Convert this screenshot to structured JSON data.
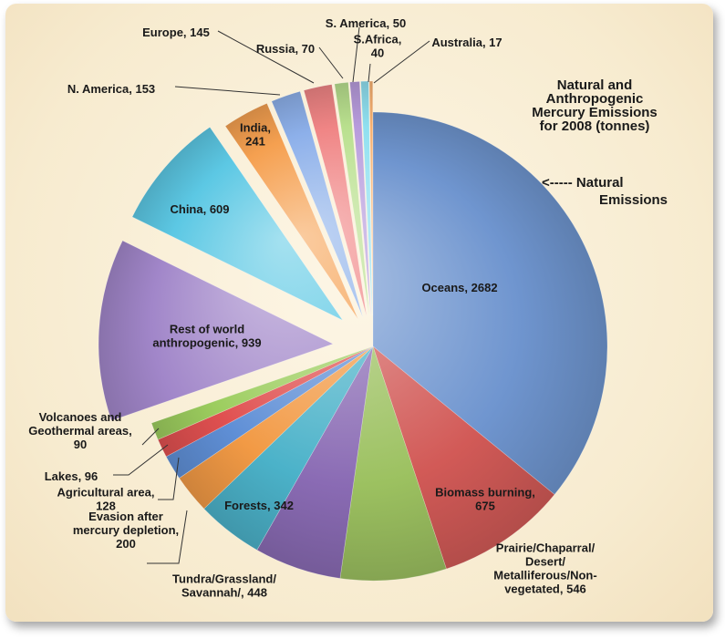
{
  "chart_data": {
    "type": "pie",
    "title_lines": [
      "Natural and",
      "Anthropogenic",
      "Mercury Emissions",
      "for 2008 (tonnes)"
    ],
    "annotation_lines": [
      "<----- Natural",
      "Emissions"
    ],
    "slices": [
      {
        "label_lines": [
          "Oceans, 2682"
        ],
        "value": 2682,
        "group": "natural",
        "color": "#6f95cf"
      },
      {
        "label_lines": [
          "Biomass burning,",
          "675"
        ],
        "value": 675,
        "group": "natural",
        "color": "#d25a57"
      },
      {
        "label_lines": [
          "Prairie/Chaparral/",
          "Desert/",
          "Metalliferous/Non-",
          "vegetated, 546"
        ],
        "value": 546,
        "group": "natural",
        "color": "#9cc160"
      },
      {
        "label_lines": [
          "Tundra/Grassland/",
          "Savannah/, 448"
        ],
        "value": 448,
        "group": "natural",
        "color": "#8a6bb4"
      },
      {
        "label_lines": [
          "Forests, 342"
        ],
        "value": 342,
        "group": "natural",
        "color": "#4bb2c9"
      },
      {
        "label_lines": [
          "Evasion after",
          "mercury depletion,",
          "200"
        ],
        "value": 200,
        "group": "natural",
        "color": "#f29a45"
      },
      {
        "label_lines": [
          "Agricultural area,",
          "128"
        ],
        "value": 128,
        "group": "natural",
        "color": "#5f8fd6"
      },
      {
        "label_lines": [
          "Lakes, 96"
        ],
        "value": 96,
        "group": "natural",
        "color": "#e05050"
      },
      {
        "label_lines": [
          "Volcanoes and",
          "Geothermal areas,",
          "90"
        ],
        "value": 90,
        "group": "natural",
        "color": "#9ccd5e"
      },
      {
        "label_lines": [
          "Rest of world",
          "anthropogenic, 939"
        ],
        "value": 939,
        "group": "anthropogenic",
        "color": "#a186c9"
      },
      {
        "label_lines": [
          "China, 609"
        ],
        "value": 609,
        "group": "anthropogenic",
        "color": "#5cc8e4"
      },
      {
        "label_lines": [
          "India,",
          "241"
        ],
        "value": 241,
        "group": "anthropogenic",
        "color": "#f5a050"
      },
      {
        "label_lines": [
          "N. America, 153"
        ],
        "value": 153,
        "group": "anthropogenic",
        "color": "#8db0ea"
      },
      {
        "label_lines": [
          "Europe, 145"
        ],
        "value": 145,
        "group": "anthropogenic",
        "color": "#f08585"
      },
      {
        "label_lines": [
          "Russia, 70"
        ],
        "value": 70,
        "group": "anthropogenic",
        "color": "#b9e08e"
      },
      {
        "label_lines": [
          "S. America, 50"
        ],
        "value": 50,
        "group": "anthropogenic",
        "color": "#b79bdc"
      },
      {
        "label_lines": [
          "S.Africa,",
          "40"
        ],
        "value": 40,
        "group": "anthropogenic",
        "color": "#8fe0f0"
      },
      {
        "label_lines": [
          "Australia, 17"
        ],
        "value": 17,
        "group": "anthropogenic",
        "color": "#f7b070"
      }
    ]
  }
}
